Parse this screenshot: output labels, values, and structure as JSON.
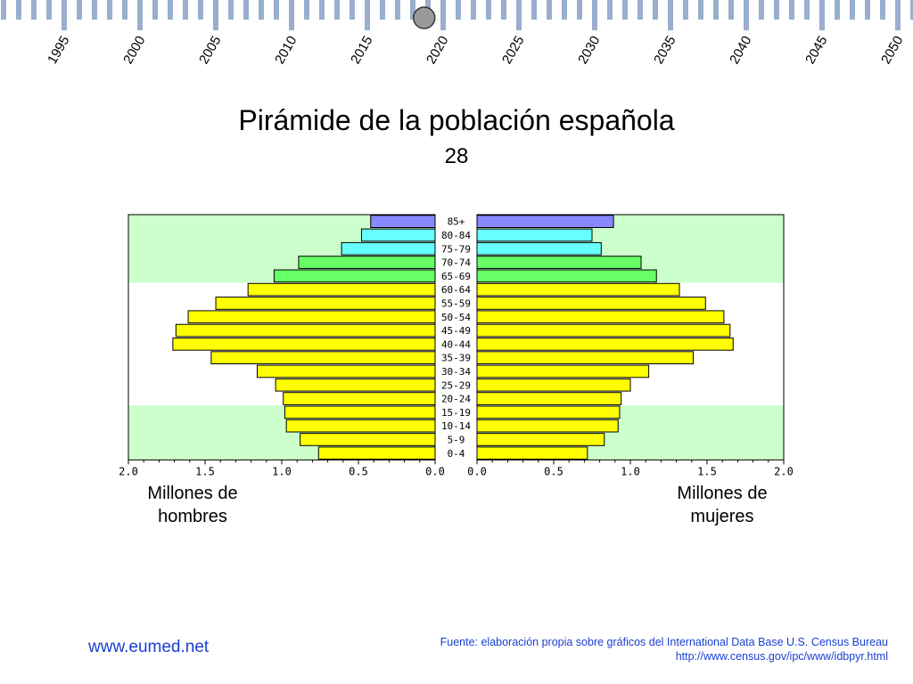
{
  "timeline": {
    "years": [
      "1995",
      "2000",
      "2005",
      "2010",
      "2015",
      "2020",
      "2025",
      "2030",
      "2035",
      "2040",
      "2045",
      "2050"
    ],
    "selected_label": "2020"
  },
  "title": "Pirámide de la población española",
  "subtitle": "28",
  "captions": {
    "left": [
      "Millones de",
      "hombres"
    ],
    "right": [
      "Millones de",
      "mujeres"
    ]
  },
  "footer": {
    "site": "www.eumed.net",
    "source": "Fuente: elaboración propia sobre gráficos del International Data Base U.S. Census Bureau",
    "url": "http://www.census.gov/ipc/www/idbpyr.html"
  },
  "colors": {
    "timeline_tick": "#9aaecd",
    "timeline_thumb": "#9a9a9a",
    "band_green": "#ccffcc",
    "bar_yellow": "#ffff00",
    "bar_green": "#66ff66",
    "bar_cyan": "#66ffff",
    "bar_purple": "#8888ff",
    "link_blue": "#1a3fd1"
  },
  "chart_data": {
    "type": "bar",
    "orientation": "horizontal",
    "layout": "population-pyramid",
    "unit": "millions",
    "xlim": [
      0,
      2.0
    ],
    "ticks": [
      "2.0",
      "1.5",
      "1.0",
      "0.5",
      "0.0"
    ],
    "right_ticks": [
      "0.0",
      "0.5",
      "1.0",
      "1.5",
      "2.0"
    ],
    "categories": [
      "85+",
      "80-84",
      "75-79",
      "70-74",
      "65-69",
      "60-64",
      "55-59",
      "50-54",
      "45-49",
      "40-44",
      "35-39",
      "30-34",
      "25-29",
      "20-24",
      "15-19",
      "10-14",
      "5-9",
      "0-4"
    ],
    "color_groups": [
      "purple",
      "cyan",
      "cyan",
      "green",
      "green",
      "yellow",
      "yellow",
      "yellow",
      "yellow",
      "yellow",
      "yellow",
      "yellow",
      "yellow",
      "yellow",
      "yellow",
      "yellow",
      "yellow",
      "yellow"
    ],
    "series": [
      {
        "name": "hombres",
        "side": "left",
        "values": [
          0.42,
          0.48,
          0.61,
          0.89,
          1.05,
          1.22,
          1.43,
          1.61,
          1.69,
          1.71,
          1.46,
          1.16,
          1.04,
          0.99,
          0.98,
          0.97,
          0.88,
          0.76
        ]
      },
      {
        "name": "mujeres",
        "side": "right",
        "values": [
          0.89,
          0.75,
          0.81,
          1.07,
          1.17,
          1.32,
          1.49,
          1.61,
          1.65,
          1.67,
          1.41,
          1.12,
          1.0,
          0.94,
          0.93,
          0.92,
          0.83,
          0.72
        ]
      }
    ],
    "background_bands": [
      {
        "color": "green",
        "from": "85+",
        "to": "65-69"
      },
      {
        "color": "white",
        "from": "60-64",
        "to": "20-24"
      },
      {
        "color": "green",
        "from": "15-19",
        "to": "0-4"
      }
    ]
  }
}
